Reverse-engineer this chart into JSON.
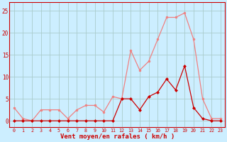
{
  "x": [
    0,
    1,
    2,
    3,
    4,
    5,
    6,
    7,
    8,
    9,
    10,
    11,
    12,
    13,
    14,
    15,
    16,
    17,
    18,
    19,
    20,
    21,
    22,
    23
  ],
  "y_rafales": [
    3.0,
    0.5,
    0.0,
    2.5,
    2.5,
    2.5,
    0.5,
    2.5,
    3.5,
    3.5,
    2.0,
    5.5,
    5.0,
    16.0,
    11.5,
    13.5,
    18.5,
    23.5,
    23.5,
    24.5,
    18.5,
    5.0,
    0.5,
    0.5
  ],
  "y_moyen": [
    0.0,
    0.0,
    0.0,
    0.0,
    0.0,
    0.0,
    0.0,
    0.0,
    0.0,
    0.0,
    0.0,
    0.0,
    5.0,
    5.0,
    2.5,
    5.5,
    6.5,
    9.5,
    7.0,
    12.5,
    3.0,
    0.5,
    0.0,
    0.0
  ],
  "color_rafales": "#f08080",
  "color_moyen": "#cc0000",
  "bg_color": "#cceeff",
  "grid_color": "#aacccc",
  "xlabel": "Vent moyen/en rafales ( km/h )",
  "yticks": [
    0,
    5,
    10,
    15,
    20,
    25
  ],
  "xticks": [
    0,
    1,
    2,
    3,
    4,
    5,
    6,
    7,
    8,
    9,
    10,
    11,
    12,
    13,
    14,
    15,
    16,
    17,
    18,
    19,
    20,
    21,
    22,
    23
  ],
  "ylim": [
    -1.5,
    27
  ],
  "xlim": [
    -0.5,
    23.5
  ]
}
